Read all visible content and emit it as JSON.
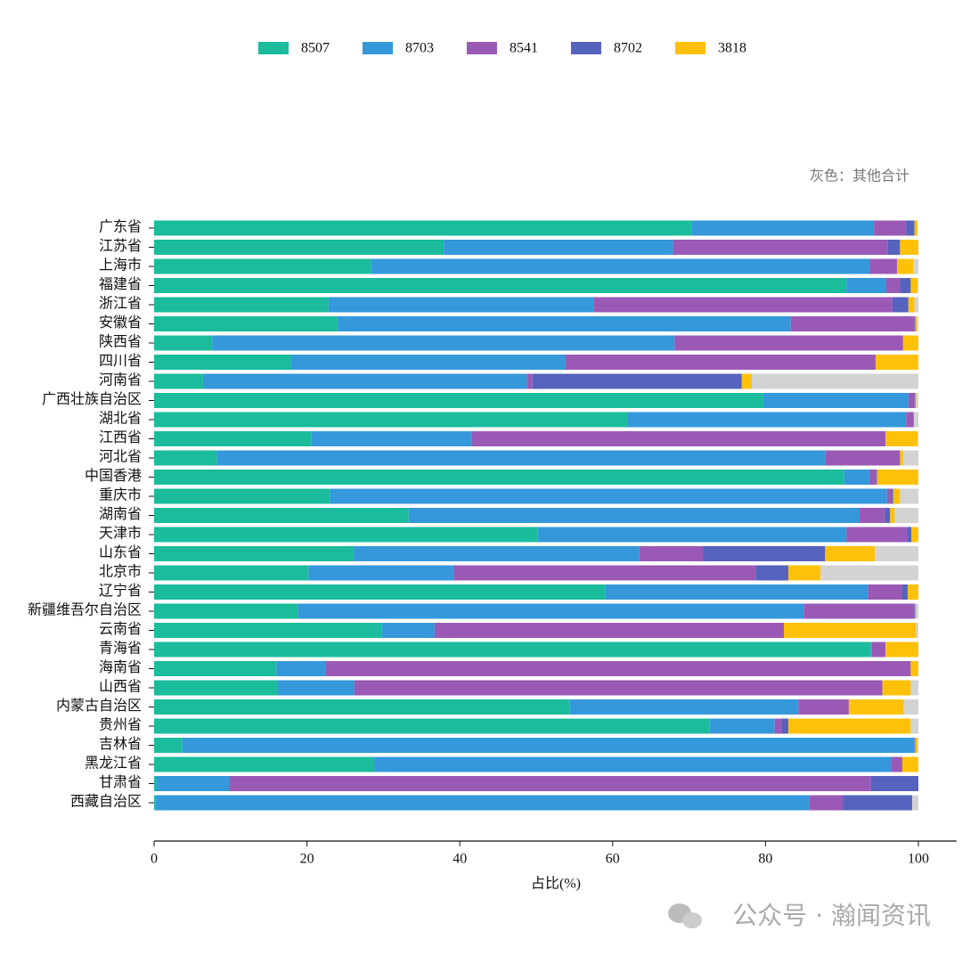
{
  "chart_data": {
    "type": "stacked-bar-horizontal",
    "annotation": "灰色：其他合计",
    "xlabel": "占比(%)",
    "watermark": "公众号 · 瀚闻资讯",
    "categories": [
      "广东省",
      "江苏省",
      "上海市",
      "福建省",
      "浙江省",
      "安徽省",
      "陕西省",
      "四川省",
      "河南省",
      "广西壮族自治区",
      "湖北省",
      "江西省",
      "河北省",
      "中国香港",
      "重庆市",
      "湖南省",
      "天津市",
      "山东省",
      "北京市",
      "辽宁省",
      "新疆维吾尔自治区",
      "云南省",
      "青海省",
      "海南省",
      "山西省",
      "内蒙古自治区",
      "贵州省",
      "吉林省",
      "黑龙江省",
      "甘肃省",
      "西藏自治区"
    ],
    "series": [
      {
        "name": "8507",
        "color": "#1abc9c",
        "values": [
          70.3,
          37.9,
          28.4,
          90.6,
          22.8,
          24.0,
          7.6,
          17.9,
          6.4,
          79.7,
          62.0,
          20.6,
          8.2,
          90.3,
          23.0,
          33.3,
          50.2,
          26.1,
          20.2,
          59.0,
          18.8,
          29.8,
          93.8,
          16.0,
          16.2,
          54.4,
          72.7,
          3.7,
          28.8,
          0.3,
          0.2
        ]
      },
      {
        "name": "8703",
        "color": "#3498db",
        "values": [
          23.9,
          30.0,
          65.2,
          5.2,
          34.7,
          59.3,
          60.5,
          35.9,
          42.4,
          19.0,
          36.4,
          21.0,
          79.6,
          3.3,
          72.9,
          59.0,
          40.4,
          37.4,
          19.0,
          34.4,
          66.2,
          6.9,
          0.1,
          6.5,
          10.0,
          29.9,
          8.5,
          95.8,
          67.6,
          9.5,
          85.5
        ]
      },
      {
        "name": "8541",
        "color": "#9b59b6",
        "values": [
          4.2,
          28.1,
          3.6,
          1.8,
          39.1,
          16.2,
          29.9,
          40.6,
          0.7,
          0.8,
          0.9,
          54.1,
          9.8,
          0.9,
          0.6,
          3.3,
          7.9,
          8.3,
          39.5,
          4.5,
          14.5,
          45.7,
          1.8,
          76.5,
          69.1,
          6.6,
          0.9,
          0.1,
          1.5,
          84.0,
          4.4
        ]
      },
      {
        "name": "8702",
        "color": "#5563be",
        "values": [
          1.1,
          1.6,
          0,
          1.4,
          2.1,
          0.1,
          0,
          0,
          27.4,
          0.1,
          0.1,
          0,
          0,
          0.1,
          0.2,
          0.7,
          0.6,
          16.0,
          4.3,
          0.7,
          0.1,
          0,
          0,
          0,
          0,
          0,
          0.9,
          0,
          0,
          6.2,
          9.1
        ]
      },
      {
        "name": "3818",
        "color": "#ffc107",
        "values": [
          0.4,
          2.4,
          2.1,
          0.9,
          0.8,
          0.2,
          2.0,
          5.6,
          1.3,
          0.1,
          0,
          4.2,
          0.4,
          5.4,
          0.9,
          0.6,
          0.9,
          6.5,
          4.2,
          1.4,
          0,
          17.3,
          4.3,
          1.0,
          3.7,
          7.2,
          16.0,
          0.3,
          2.1,
          0,
          0
        ]
      }
    ],
    "other": {
      "color": "#d3d3d3",
      "values": [
        0,
        0,
        0.7,
        0.1,
        0.5,
        0.2,
        0,
        0,
        21.8,
        0.3,
        0.6,
        0.1,
        2.0,
        0,
        2.4,
        3.1,
        0,
        5.7,
        12.8,
        0,
        0.4,
        0.3,
        0,
        0,
        1.0,
        1.9,
        1.0,
        0.1,
        0,
        0,
        0.8
      ]
    },
    "xlim": [
      0,
      105
    ],
    "xticks": [
      0,
      20,
      40,
      60,
      80,
      100
    ]
  }
}
